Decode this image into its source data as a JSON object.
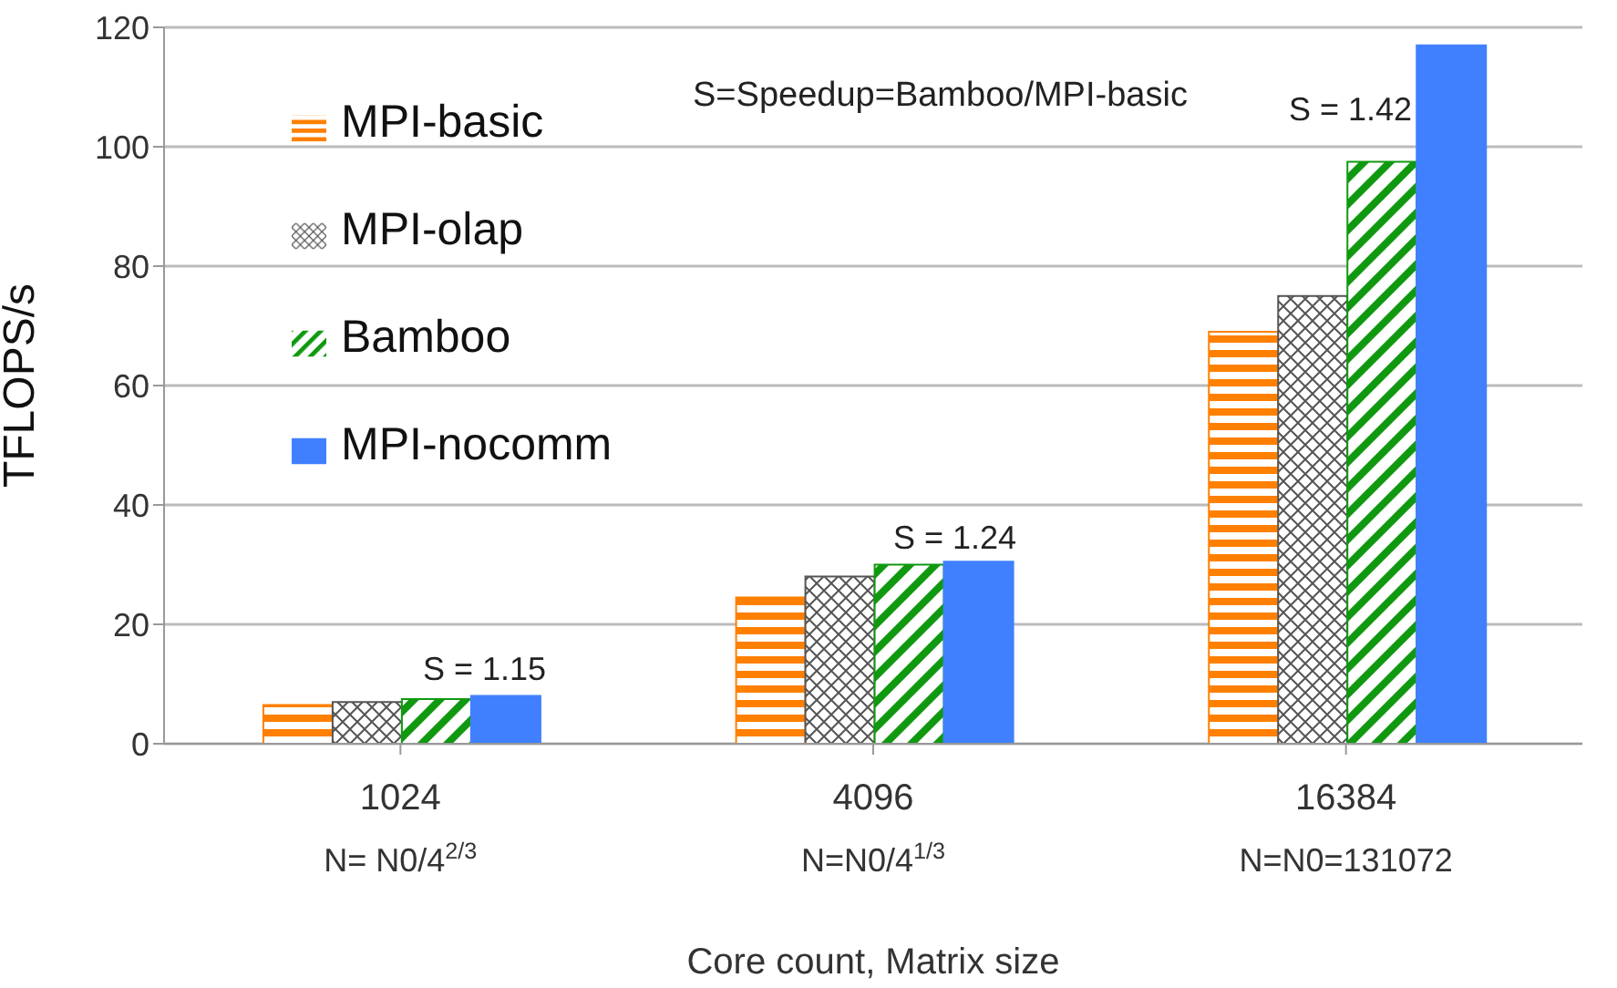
{
  "chart_data": {
    "type": "bar",
    "ylabel": "TFLOPS/s",
    "xlabel": "Core count, Matrix size",
    "categories": [
      "1024\nN= N0/4$^{2/3}$",
      "4096\nN=N0/4$^{1/3}$",
      "16384\nN=N0=131072"
    ],
    "series": [
      {
        "name": "MPI-basic",
        "color": "#ff8000",
        "values": [
          6.5,
          24.5,
          69
        ]
      },
      {
        "name": "MPI-olap",
        "color": "#555555",
        "values": [
          7,
          28,
          75
        ]
      },
      {
        "name": "Bamboo",
        "color": "#109910",
        "values": [
          7.5,
          30,
          97.5
        ]
      },
      {
        "name": "MPI-nocomm",
        "color": "#4080ff",
        "values": [
          8,
          30.5,
          117
        ]
      }
    ],
    "ylim": [
      0,
      120
    ],
    "yticks": [
      0,
      20,
      40,
      60,
      80,
      100,
      120
    ],
    "grid": "y",
    "legend": "top left",
    "annotations": [
      "S=Speedup=Bamboo/MPI-basic",
      "S = 1.15",
      "S = 1.24",
      "S = 1.42"
    ]
  }
}
